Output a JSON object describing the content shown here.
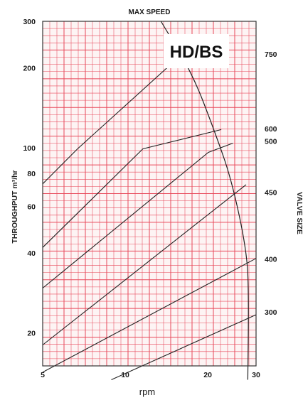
{
  "chart_data": {
    "type": "line",
    "title": "MAX SPEED",
    "badge": "HD/BS",
    "xlabel": "rpm",
    "ylabel": "THROUGHPUT m³/hr",
    "right_label": "VALVE SIZE",
    "x_scale": "log",
    "y_scale": "log",
    "xlim": [
      5,
      30
    ],
    "ylim": [
      15,
      300
    ],
    "x_ticks": [
      {
        "value": 5,
        "label": "5"
      },
      {
        "value": 10,
        "label": "10"
      },
      {
        "value": 20,
        "label": "20"
      },
      {
        "value": 30,
        "label": "30"
      }
    ],
    "y_ticks": [
      {
        "value": 20,
        "label": "20"
      },
      {
        "value": 40,
        "label": "40"
      },
      {
        "value": 60,
        "label": "60"
      },
      {
        "value": 80,
        "label": "80"
      },
      {
        "value": 100,
        "label": "100"
      },
      {
        "value": 200,
        "label": "200"
      },
      {
        "value": 300,
        "label": "300"
      }
    ],
    "grid": true,
    "grid_color": "#e8485a",
    "line_color": "#222222",
    "series": [
      {
        "label": "750",
        "label_y": 226,
        "points": [
          [
            5,
            73
          ],
          [
            6.7,
            99
          ],
          [
            16.7,
            233
          ]
        ]
      },
      {
        "label": "600",
        "label_y": 118,
        "points": [
          [
            5,
            42
          ],
          [
            11.6,
            99
          ],
          [
            22.4,
            117
          ]
        ]
      },
      {
        "label": "500",
        "label_y": 106,
        "points": [
          [
            5,
            29.5
          ],
          [
            20.1,
            96
          ],
          [
            24.7,
            104
          ]
        ]
      },
      {
        "label": "450",
        "label_y": 68,
        "points": [
          [
            5,
            18
          ],
          [
            27.6,
            72.5
          ]
        ]
      },
      {
        "label": "400",
        "label_y": 38,
        "points": [
          [
            5,
            14.2
          ],
          [
            30,
            38.2
          ]
        ]
      },
      {
        "label": "300",
        "label_y": 24,
        "points": [
          [
            8.9,
            13.3
          ],
          [
            30,
            23.4
          ]
        ]
      }
    ],
    "max_speed_curve": [
      [
        13.5,
        300
      ],
      [
        17.6,
        190
      ],
      [
        21.2,
        115
      ],
      [
        24.4,
        76
      ],
      [
        27.8,
        40.5
      ],
      [
        28.2,
        27.2
      ],
      [
        28.0,
        13.3
      ]
    ]
  }
}
